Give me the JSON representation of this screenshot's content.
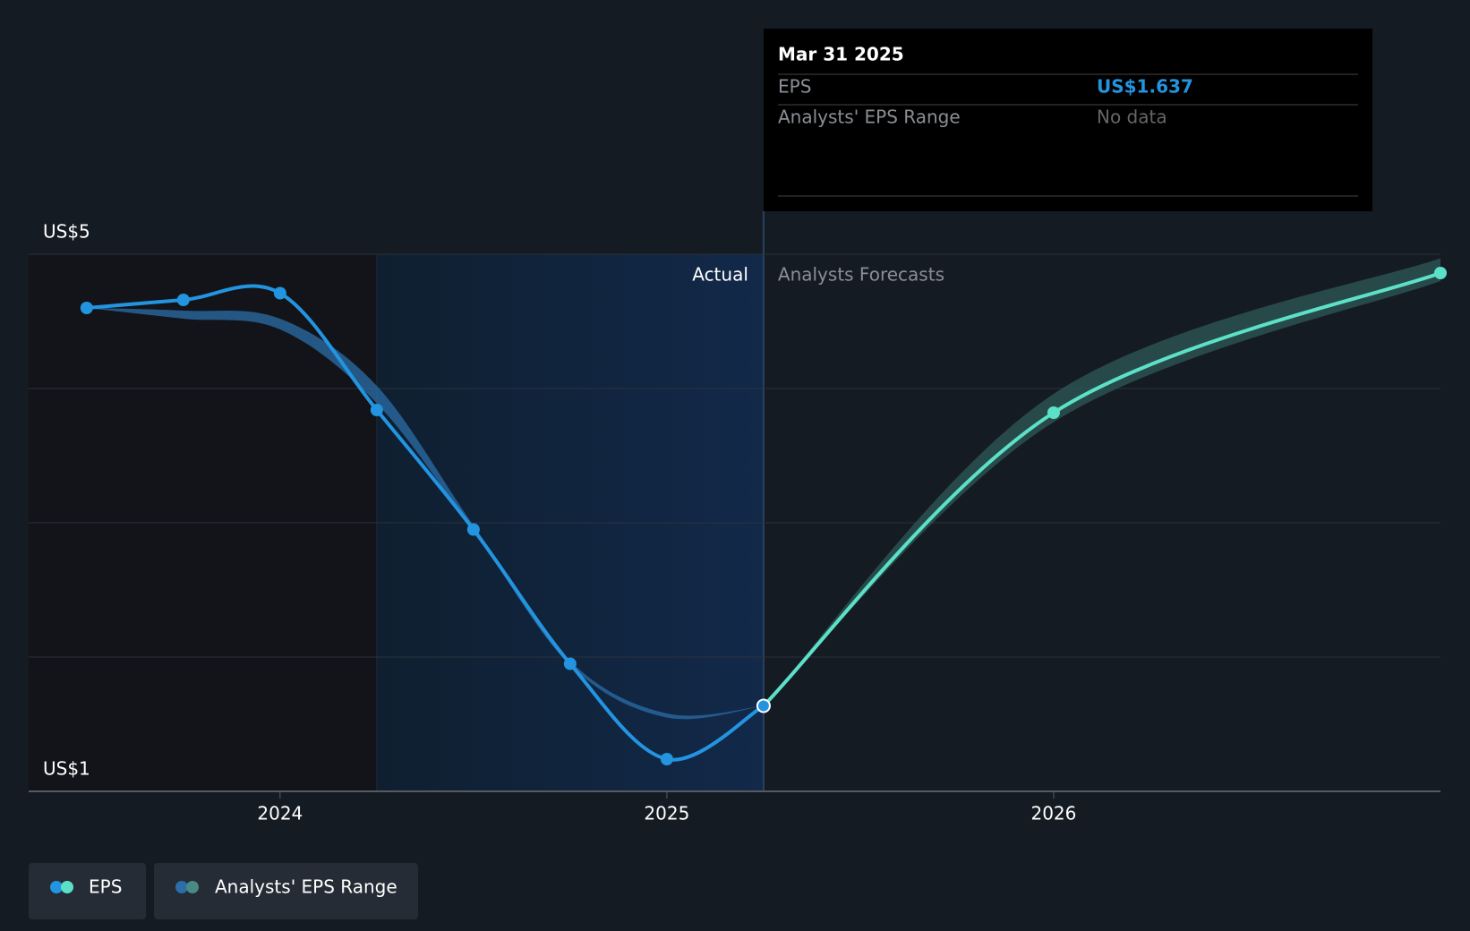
{
  "chart_data": {
    "type": "line",
    "x": [
      2023.5,
      2023.75,
      2024,
      2024.25,
      2024.5,
      2024.75,
      2025,
      2025.25,
      2026,
      2027
    ],
    "xlim": [
      2023.35,
      2027
    ],
    "xticks": [
      2024,
      2025,
      2026
    ],
    "ylim": [
      1,
      5
    ],
    "yticks": [
      {
        "value": 1,
        "label": "US$1"
      },
      {
        "value": 5,
        "label": "US$5"
      }
    ],
    "ygrid": [
      1,
      2,
      3,
      4,
      5
    ],
    "forecast_start": 2025.25,
    "highlight": [
      2024.25,
      2025.25
    ],
    "series": [
      {
        "name": "EPS",
        "color": "#2394e0",
        "forecast_color": "#5ce1c8",
        "values": [
          4.6,
          4.66,
          4.71,
          3.84,
          2.95,
          1.95,
          1.24,
          1.637,
          3.82,
          4.86
        ]
      }
    ],
    "range": {
      "name": "Analysts' EPS Range",
      "color": "#2b6ea8",
      "forecast_color": "#2f5a57",
      "low": [
        4.6,
        4.52,
        4.44,
        3.89,
        2.94,
        1.94,
        1.55,
        1.637,
        3.75,
        4.8
      ],
      "high": [
        4.6,
        4.58,
        4.52,
        4.02,
        2.98,
        1.97,
        1.58,
        1.637,
        3.96,
        4.97
      ]
    },
    "annotations": {
      "actual": "Actual",
      "forecast": "Analysts Forecasts"
    },
    "tooltip": {
      "date": "Mar 31 2025",
      "rows": [
        {
          "label": "EPS",
          "value": "US$1.637"
        },
        {
          "label": "Analysts' EPS Range",
          "value": "No data"
        }
      ]
    }
  }
}
